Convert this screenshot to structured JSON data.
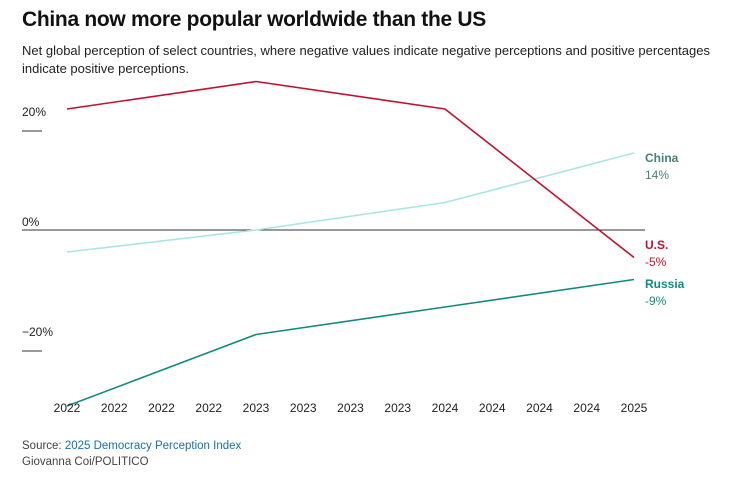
{
  "header": {
    "title": "China now more popular worldwide than the US",
    "subtitle": "Net global perception of select countries, where negative values indicate negative perceptions and positive percentages indicate positive perceptions."
  },
  "chart_data": {
    "type": "line",
    "title": "China now more popular worldwide than the US",
    "xlabel": "",
    "ylabel": "",
    "x_tick_labels": [
      "2022",
      "2022",
      "2022",
      "2022",
      "2023",
      "2023",
      "2023",
      "2023",
      "2024",
      "2024",
      "2024",
      "2024",
      "2025"
    ],
    "y_ticks": [
      {
        "value": 20,
        "label": "20%"
      },
      {
        "value": 0,
        "label": "0%"
      },
      {
        "value": -20,
        "label": "−20%"
      }
    ],
    "ylim": [
      -33,
      28
    ],
    "x": [
      2022,
      2023,
      2024,
      2025
    ],
    "series": [
      {
        "name": "U.S.",
        "label": "U.S.",
        "end_label": "-5%",
        "color": "#c4102f",
        "values": [
          22,
          27,
          22,
          -5
        ]
      },
      {
        "name": "China",
        "label": "China",
        "end_label": "14%",
        "color": "#a9e6e2",
        "label_color": "#4b7f7a",
        "values": [
          -4,
          0,
          5,
          14
        ]
      },
      {
        "name": "Russia",
        "label": "Russia",
        "end_label": "-9%",
        "color": "#128a80",
        "values": [
          -32,
          -19,
          -14,
          -9
        ]
      }
    ]
  },
  "footer": {
    "source_prefix": "Source: ",
    "source_link": "2025 Democracy Perception Index",
    "credit": "Giovanna Coi/POLITICO"
  }
}
